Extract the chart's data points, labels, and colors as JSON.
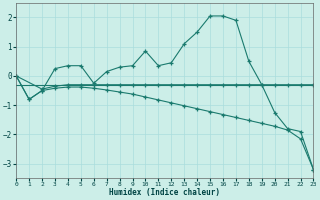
{
  "xlabel": "Humidex (Indice chaleur)",
  "bg_color": "#cceee8",
  "grid_color": "#b0ddd8",
  "line_color": "#1a7a6e",
  "xlim": [
    0,
    23
  ],
  "ylim": [
    -3.5,
    2.5
  ],
  "yticks": [
    -3,
    -2,
    -1,
    0,
    1,
    2
  ],
  "xticks": [
    0,
    1,
    2,
    3,
    4,
    5,
    6,
    7,
    8,
    9,
    10,
    11,
    12,
    13,
    14,
    15,
    16,
    17,
    18,
    19,
    20,
    21,
    22,
    23
  ],
  "series": [
    {
      "x": [
        0,
        1,
        2,
        3,
        4,
        5,
        6,
        7,
        8,
        9,
        10,
        11,
        12,
        13,
        14,
        15,
        16,
        17,
        18,
        19,
        20,
        21,
        22,
        23
      ],
      "y": [
        0.0,
        -0.8,
        -0.5,
        0.25,
        0.35,
        0.35,
        -0.25,
        0.15,
        0.3,
        0.35,
        0.85,
        0.35,
        0.45,
        1.1,
        1.5,
        2.05,
        2.05,
        1.9,
        0.5,
        -0.3,
        -1.25,
        -1.8,
        -1.9,
        -3.2
      ],
      "marker": true
    },
    {
      "x": [
        0,
        2,
        3,
        4,
        5,
        6,
        7,
        8,
        9,
        10,
        11,
        12,
        13,
        14,
        15,
        16,
        17,
        18,
        19,
        20,
        21,
        22,
        23
      ],
      "y": [
        0.0,
        -0.45,
        -0.35,
        -0.3,
        -0.3,
        -0.3,
        -0.3,
        -0.3,
        -0.3,
        -0.3,
        -0.3,
        -0.3,
        -0.3,
        -0.3,
        -0.3,
        -0.3,
        -0.3,
        -0.3,
        -0.3,
        -0.3,
        -0.3,
        -0.3,
        -0.3
      ],
      "marker": true
    },
    {
      "x": [
        0,
        23
      ],
      "y": [
        -0.3,
        -0.3
      ],
      "marker": false
    },
    {
      "x": [
        0,
        1,
        2,
        3,
        4,
        5,
        6,
        7,
        8,
        9,
        10,
        11,
        12,
        13,
        14,
        15,
        16,
        17,
        18,
        19,
        20,
        21,
        22,
        23
      ],
      "y": [
        0.0,
        -0.8,
        -0.5,
        -0.42,
        -0.38,
        -0.38,
        -0.42,
        -0.48,
        -0.55,
        -0.62,
        -0.72,
        -0.82,
        -0.92,
        -1.02,
        -1.12,
        -1.22,
        -1.32,
        -1.42,
        -1.52,
        -1.62,
        -1.72,
        -1.85,
        -2.15,
        -3.2
      ],
      "marker": true
    }
  ]
}
